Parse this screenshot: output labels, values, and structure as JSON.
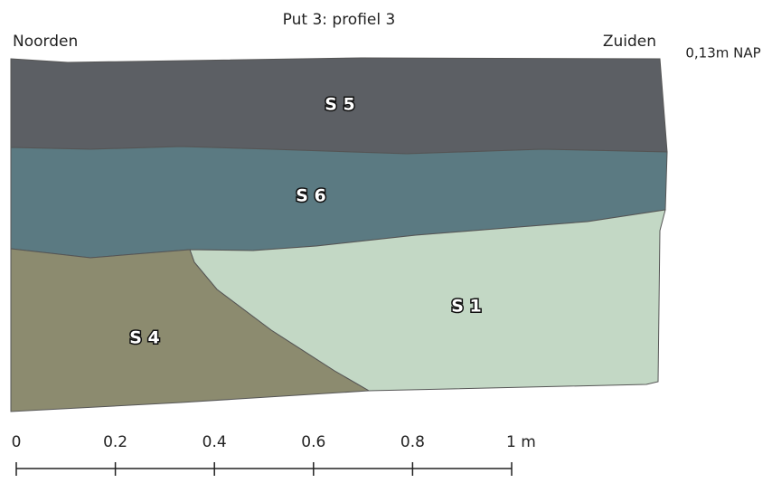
{
  "title": "Put 3: profiel 3",
  "left_label": "Noorden",
  "right_label": "Zuiden",
  "level_label": "0,13m NAP",
  "layers": [
    {
      "label": "S 5",
      "color": "#5c5f64"
    },
    {
      "label": "S 6",
      "color": "#5b7a82"
    },
    {
      "label": "S 1",
      "color": "#c3d8c5"
    },
    {
      "label": "S 4",
      "color": "#8c8b6f"
    }
  ],
  "scale": {
    "ticks": [
      0,
      0.2,
      0.4,
      0.6,
      0.8,
      {
        "value": 1,
        "label": "1 m"
      }
    ]
  }
}
